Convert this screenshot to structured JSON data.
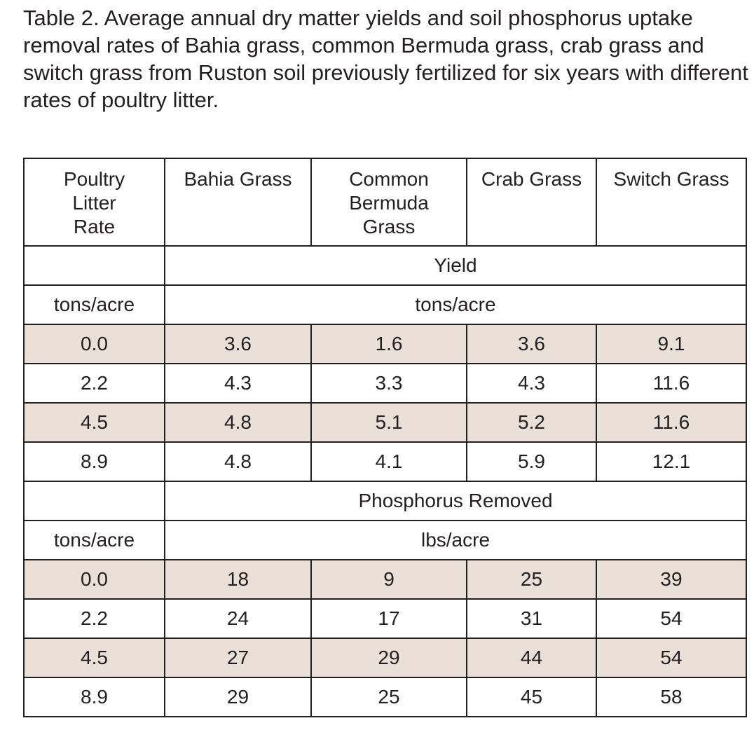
{
  "caption": "Table 2. Average annual dry matter yields and soil phosphorus uptake removal rates of Bahia grass, common Bermuda grass, crab grass and switch grass from Ruston soil previously fertilized for six years with different rates of poultry litter.",
  "header": {
    "rate": "Poultry Litter Rate",
    "bahia": "Bahia Grass",
    "bermuda": "Common Bermuda Grass",
    "crab": "Crab Grass",
    "switch": "Switch Grass"
  },
  "sections": [
    {
      "title": "Yield",
      "rate_unit": "tons/acre",
      "value_unit": "tons/acre",
      "rows": [
        {
          "rate": "0.0",
          "bahia": "3.6",
          "bermuda": "1.6",
          "crab": "3.6",
          "switch": "9.1"
        },
        {
          "rate": "2.2",
          "bahia": "4.3",
          "bermuda": "3.3",
          "crab": "4.3",
          "switch": "11.6"
        },
        {
          "rate": "4.5",
          "bahia": "4.8",
          "bermuda": "5.1",
          "crab": "5.2",
          "switch": "11.6"
        },
        {
          "rate": "8.9",
          "bahia": "4.8",
          "bermuda": "4.1",
          "crab": "5.9",
          "switch": "12.1"
        }
      ]
    },
    {
      "title": "Phosphorus Removed",
      "rate_unit": "tons/acre",
      "value_unit": "lbs/acre",
      "rows": [
        {
          "rate": "0.0",
          "bahia": "18",
          "bermuda": "9",
          "crab": "25",
          "switch": "39"
        },
        {
          "rate": "2.2",
          "bahia": "24",
          "bermuda": "17",
          "crab": "31",
          "switch": "54"
        },
        {
          "rate": "4.5",
          "bahia": "27",
          "bermuda": "29",
          "crab": "44",
          "switch": "54"
        },
        {
          "rate": "8.9",
          "bahia": "29",
          "bermuda": "25",
          "crab": "45",
          "switch": "58"
        }
      ]
    }
  ],
  "colors": {
    "shaded_row": "#ebe0d8",
    "text": "#231f20",
    "border": "#231f20"
  }
}
